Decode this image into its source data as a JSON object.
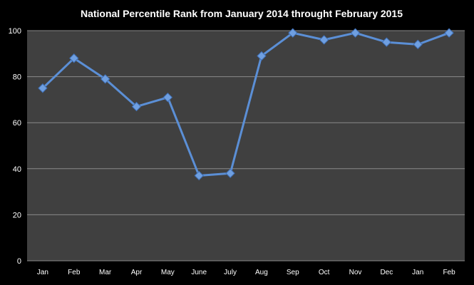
{
  "chart_data": {
    "type": "line",
    "title": "National Percentile Rank from January 2014 throught February 2015",
    "xlabel": "",
    "ylabel": "",
    "categories": [
      "Jan",
      "Feb",
      "Mar",
      "Apr",
      "May",
      "June",
      "July",
      "Aug",
      "Sep",
      "Oct",
      "Nov",
      "Dec",
      "Jan",
      "Feb"
    ],
    "series": [
      {
        "values": [
          75,
          88,
          79,
          67,
          71,
          37,
          38,
          89,
          99,
          96,
          99,
          95,
          94,
          99
        ]
      }
    ],
    "ylim": [
      0,
      100
    ],
    "yticks": [
      0,
      20,
      40,
      60,
      80,
      100
    ],
    "grid": true,
    "legend": "none",
    "marker": "diamond"
  },
  "colors": {
    "background": "#000000",
    "plot_area": "#404040",
    "gridline": "#8a8a8a",
    "line": "#5b8fd6",
    "marker": "#6f9fe0",
    "text": "#ffffff"
  }
}
